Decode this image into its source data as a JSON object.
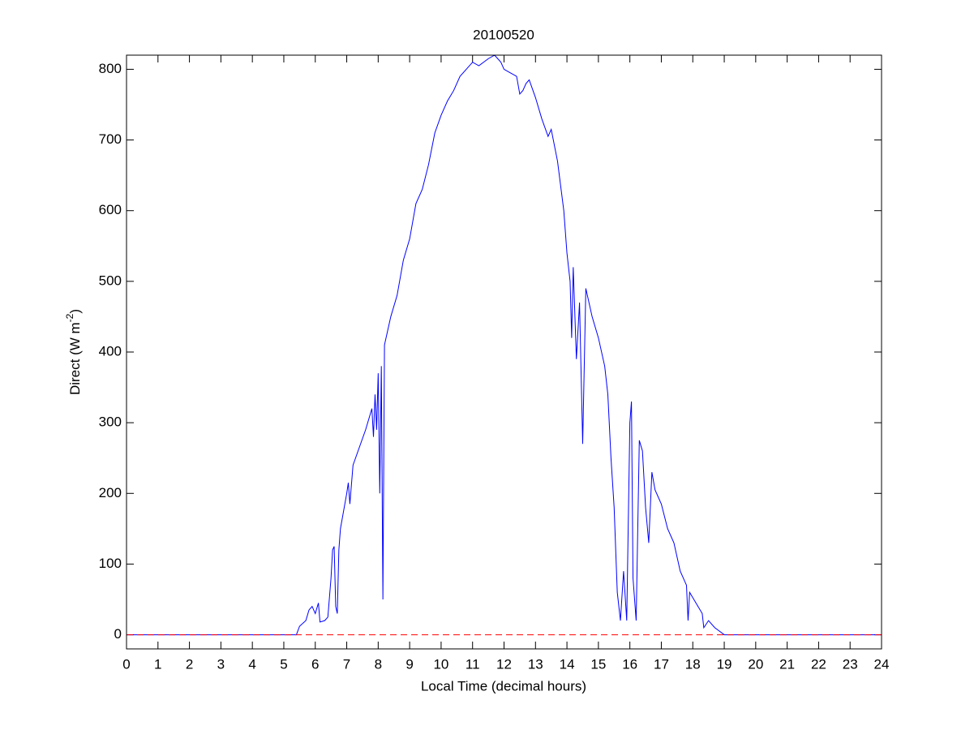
{
  "chart_data": {
    "type": "line",
    "title": "20100520",
    "xlabel": "Local Time (decimal hours)",
    "ylabel_parts": [
      "Direct (W m",
      "-2",
      ")"
    ],
    "xlim": [
      0,
      24
    ],
    "xticks": [
      0,
      1,
      2,
      3,
      4,
      5,
      6,
      7,
      8,
      9,
      10,
      11,
      12,
      13,
      14,
      15,
      16,
      17,
      18,
      19,
      20,
      21,
      22,
      23,
      24
    ],
    "ylim": [
      -20,
      820
    ],
    "yticks": [
      0,
      100,
      200,
      300,
      400,
      500,
      600,
      700,
      800
    ],
    "reference_line": {
      "value": 0,
      "color": "#ff0000"
    },
    "series": [
      {
        "color": "#0000ff",
        "x": [
          0,
          5.4,
          5.5,
          5.7,
          5.8,
          5.9,
          6.0,
          6.1,
          6.15,
          6.3,
          6.4,
          6.5,
          6.55,
          6.6,
          6.65,
          6.7,
          6.75,
          6.8,
          6.9,
          7.0,
          7.05,
          7.1,
          7.2,
          7.4,
          7.6,
          7.8,
          7.85,
          7.9,
          7.95,
          8.0,
          8.05,
          8.1,
          8.15,
          8.2,
          8.4,
          8.6,
          8.8,
          9.0,
          9.2,
          9.4,
          9.6,
          9.8,
          10.0,
          10.2,
          10.4,
          10.6,
          10.8,
          11.0,
          11.2,
          11.5,
          11.7,
          11.9,
          12.0,
          12.2,
          12.4,
          12.5,
          12.6,
          12.7,
          12.8,
          13.0,
          13.2,
          13.4,
          13.5,
          13.7,
          13.9,
          14.0,
          14.1,
          14.15,
          14.2,
          14.3,
          14.4,
          14.5,
          14.6,
          14.8,
          15.0,
          15.2,
          15.3,
          15.4,
          15.5,
          15.6,
          15.7,
          15.8,
          15.9,
          16.0,
          16.05,
          16.1,
          16.2,
          16.3,
          16.4,
          16.5,
          16.6,
          16.7,
          16.8,
          17.0,
          17.2,
          17.4,
          17.6,
          17.8,
          17.85,
          17.9,
          18.1,
          18.3,
          18.35,
          18.5,
          18.7,
          19.0,
          24
        ],
        "values": [
          0,
          0,
          12,
          20,
          35,
          40,
          30,
          45,
          18,
          20,
          25,
          80,
          120,
          125,
          40,
          30,
          120,
          150,
          175,
          200,
          215,
          185,
          240,
          265,
          290,
          320,
          280,
          340,
          290,
          370,
          200,
          380,
          50,
          410,
          450,
          480,
          530,
          560,
          610,
          630,
          665,
          710,
          735,
          755,
          770,
          790,
          800,
          810,
          805,
          815,
          820,
          810,
          800,
          795,
          790,
          765,
          770,
          780,
          785,
          760,
          730,
          705,
          715,
          670,
          600,
          540,
          500,
          420,
          520,
          390,
          470,
          270,
          490,
          450,
          420,
          380,
          340,
          250,
          180,
          60,
          20,
          90,
          20,
          300,
          330,
          80,
          20,
          275,
          260,
          180,
          130,
          230,
          205,
          185,
          150,
          130,
          90,
          70,
          20,
          60,
          45,
          30,
          10,
          20,
          10,
          0,
          0
        ]
      }
    ]
  }
}
